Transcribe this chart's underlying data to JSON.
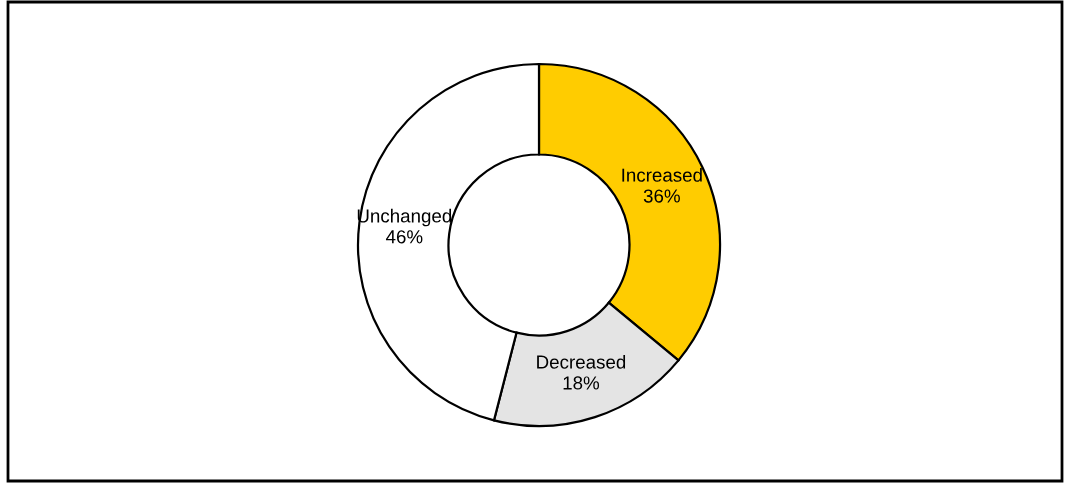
{
  "chart_data": {
    "type": "donut",
    "categories": [
      "Increased",
      "Decreased",
      "Unchanged"
    ],
    "values": [
      36,
      18,
      46
    ],
    "value_labels": [
      "36%",
      "18%",
      "46%"
    ],
    "colors": [
      "#ffcc00",
      "#e4e4e4",
      "#ffffff"
    ],
    "legend": false
  }
}
